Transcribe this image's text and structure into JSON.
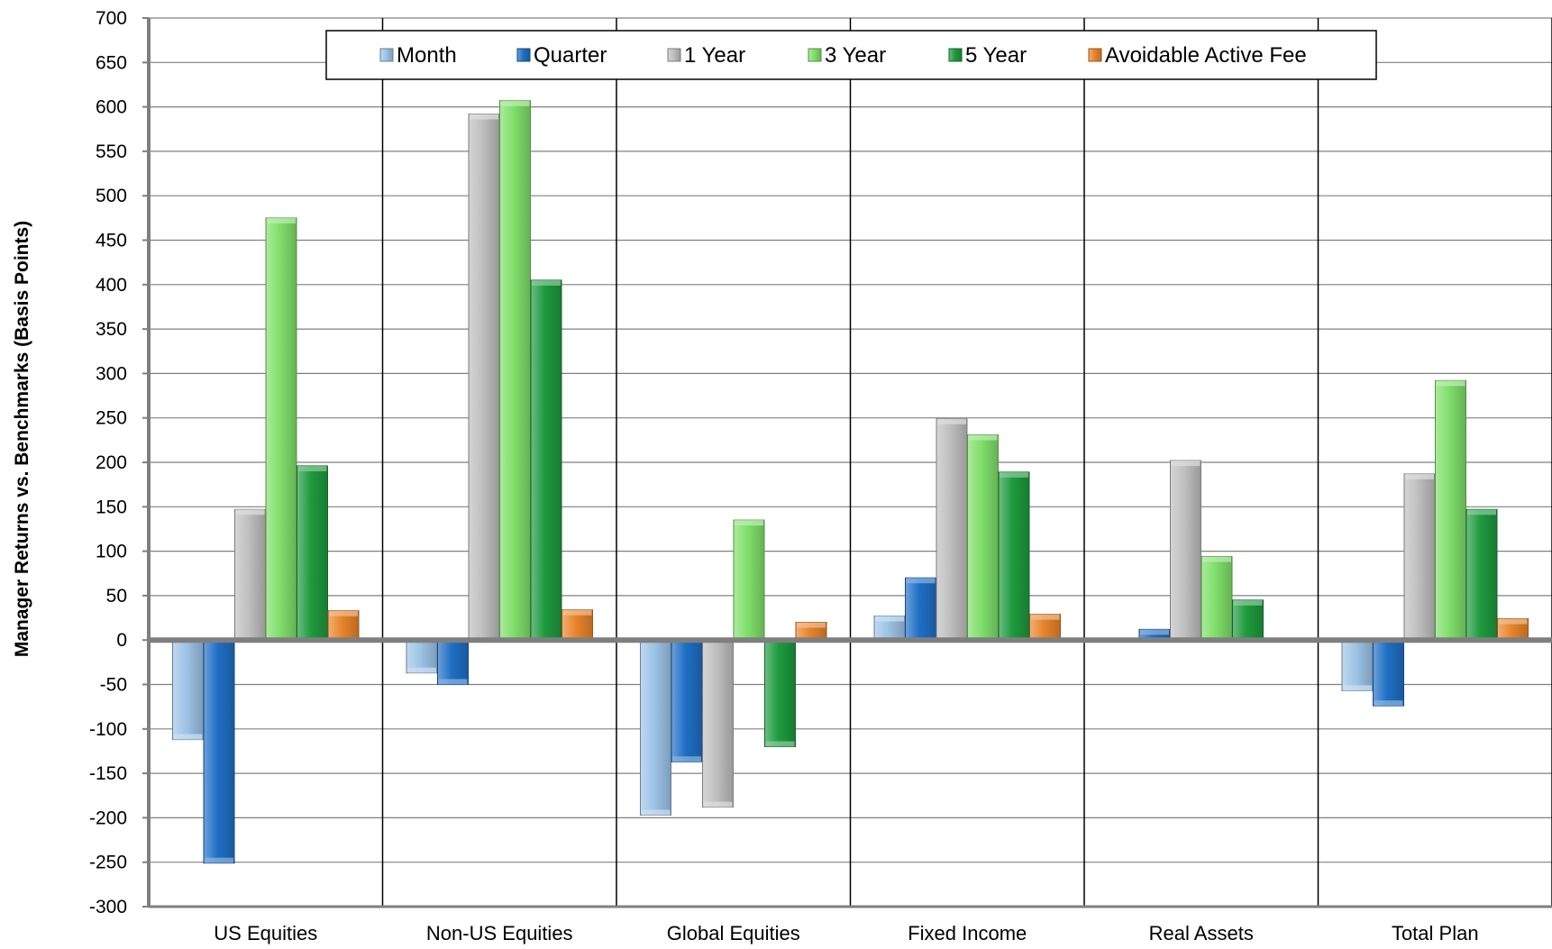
{
  "chart_data": {
    "type": "bar",
    "title": "",
    "xlabel": "",
    "ylabel": "Manager Returns vs. Benchmarks (Basis Points)",
    "ylim": [
      -300,
      700
    ],
    "ytick_step": 50,
    "yticks": [
      "700",
      "650",
      "600",
      "550",
      "500",
      "450",
      "400",
      "350",
      "300",
      "250",
      "200",
      "150",
      "100",
      "50",
      "0",
      "-50",
      "-100",
      "-150",
      "-200",
      "-250",
      "-300"
    ],
    "grid": true,
    "legend_position": "top",
    "categories": [
      "US Equities",
      "Non-US Equities",
      "Global Equities",
      "Fixed Income",
      "Real Assets",
      "Total Plan"
    ],
    "series": [
      {
        "name": "Month",
        "color": "#9dc3e6",
        "values": [
          -112,
          -37,
          -197,
          27,
          0,
          -57
        ]
      },
      {
        "name": "Quarter",
        "color": "#1f6fc5",
        "values": [
          -251,
          -50,
          -137,
          70,
          12,
          -74
        ]
      },
      {
        "name": "1 Year",
        "color": "#bfbfbf",
        "values": [
          147,
          592,
          -188,
          249,
          202,
          187
        ]
      },
      {
        "name": "3 Year",
        "color": "#7fdf6a",
        "values": [
          475,
          607,
          135,
          231,
          94,
          292
        ]
      },
      {
        "name": "5 Year",
        "color": "#1e9a3e",
        "values": [
          196,
          405,
          -120,
          189,
          45,
          147
        ]
      },
      {
        "name": "Avoidable Active Fee",
        "color": "#e8842a",
        "values": [
          33,
          34,
          20,
          29,
          0,
          24
        ]
      }
    ]
  }
}
